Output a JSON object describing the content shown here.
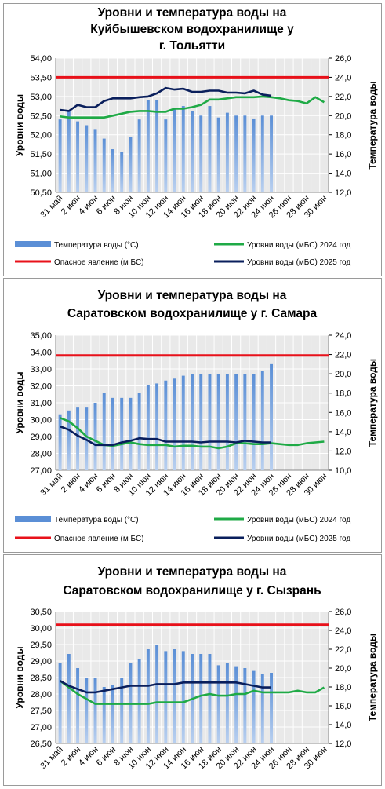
{
  "colors": {
    "bar": "#5b8fd6",
    "bar_light": "#b9d0f0",
    "level_2024": "#1faa46",
    "level_2025": "#0a1f5c",
    "danger": "#e8111a",
    "plot_bg": "#e9e9e9",
    "grid": "#ffffff"
  },
  "legend": {
    "temp": "Температура воды (°С)",
    "l2024": "Уровни воды (мБС) 2024 год",
    "danger": "Опасное явление    (м БС)",
    "l2025": "Уровни воды (мБС) 2025 год"
  },
  "chart_data": [
    {
      "type": "bar",
      "title_lines": [
        "Уровни и температура  воды на",
        "Куйбышевском водохранилище у",
        "г. Тольятти"
      ],
      "ylabel": "Уровни воды",
      "y2label": "Температура воды",
      "ylim": [
        50.5,
        54.0
      ],
      "y_ticks": [
        "50,50",
        "51,00",
        "51,50",
        "52,00",
        "52,50",
        "53,00",
        "53,50",
        "54,00"
      ],
      "y2lim": [
        12.0,
        26.0
      ],
      "y2_ticks": [
        "12,0",
        "14,0",
        "16,0",
        "18,0",
        "20,0",
        "22,0",
        "24,0",
        "26,0"
      ],
      "categories": [
        "31 май",
        "1 июн",
        "2 июн",
        "3 июн",
        "4 июн",
        "5 июн",
        "6 июн",
        "7 июн",
        "8 июн",
        "9 июн",
        "10 июн",
        "11 июн",
        "12 июн",
        "13 июн",
        "14 июн",
        "15 июн",
        "16 июн",
        "17 июн",
        "18 июн",
        "19 июн",
        "20 июн",
        "21 июн",
        "22 июн",
        "23 июн",
        "24 июн",
        "25 июн",
        "26 июн",
        "27 июн",
        "28 июн",
        "29 июн",
        "30 июн"
      ],
      "x_tick_labels": [
        "31 май",
        "2 июн",
        "4 июн",
        "6 июн",
        "8 июн",
        "10 июн",
        "12 июн",
        "14 июн",
        "16 июн",
        "18 июн",
        "20 июн",
        "22 июн",
        "24 июн",
        "26 июн",
        "28 июн",
        "30 июн"
      ],
      "temperature": [
        19.6,
        20.5,
        19.4,
        19.0,
        18.6,
        17.6,
        16.5,
        16.2,
        17.8,
        19.6,
        21.6,
        21.6,
        19.6,
        20.8,
        21.0,
        20.5,
        20.0,
        21.0,
        19.8,
        20.3,
        20.0,
        20.0,
        19.7,
        20.0,
        20.0,
        null,
        null,
        null,
        null,
        null,
        null
      ],
      "level_2024": [
        52.48,
        52.45,
        52.45,
        52.45,
        52.45,
        52.45,
        52.5,
        52.55,
        52.6,
        52.62,
        52.62,
        52.6,
        52.6,
        52.68,
        52.68,
        52.72,
        52.78,
        52.92,
        52.92,
        52.95,
        52.98,
        52.98,
        52.98,
        53.0,
        52.98,
        52.95,
        52.9,
        52.88,
        52.82,
        52.98,
        52.85
      ],
      "level_2025": [
        52.65,
        52.62,
        52.78,
        52.72,
        52.72,
        52.88,
        52.95,
        52.95,
        52.95,
        52.98,
        53.0,
        53.08,
        53.22,
        53.18,
        53.2,
        53.12,
        53.12,
        53.15,
        53.15,
        53.1,
        53.1,
        53.08,
        53.15,
        53.05,
        53.02,
        null,
        null,
        null,
        null,
        null,
        null
      ],
      "danger_level": 53.5
    },
    {
      "type": "bar",
      "title_lines": [
        "Уровни и температура  воды на",
        "Саратовском водохранилище у  г. Самара"
      ],
      "ylabel": "Уровни воды",
      "y2label": "Температура воды",
      "ylim": [
        27.0,
        35.0
      ],
      "y_ticks": [
        "27,00",
        "28,00",
        "29,00",
        "30,00",
        "31,00",
        "32,00",
        "33,00",
        "34,00",
        "35,00"
      ],
      "y2lim": [
        10.0,
        24.0
      ],
      "y2_ticks": [
        "10,0",
        "12,0",
        "14,0",
        "16,0",
        "18,0",
        "20,0",
        "22,0",
        "24,0"
      ],
      "categories": [
        "31 май",
        "1 июн",
        "2 июн",
        "3 июн",
        "4 июн",
        "5 июн",
        "6 июн",
        "7 июн",
        "8 июн",
        "9 июн",
        "10 июн",
        "11 июн",
        "12 июн",
        "13 июн",
        "14 июн",
        "15 июн",
        "16 июн",
        "17 июн",
        "18 июн",
        "19 июн",
        "20 июн",
        "21 июн",
        "22 июн",
        "23 июн",
        "24 июн",
        "25 июн",
        "26 июн",
        "27 июн",
        "28 июн",
        "29 июн",
        "30 июн"
      ],
      "x_tick_labels": [
        "31 май",
        "2 июн",
        "4 июн",
        "6 июн",
        "8 июн",
        "10 июн",
        "12 июн",
        "14 июн",
        "16 июн",
        "18 июн",
        "20 июн",
        "22 июн",
        "24 июн",
        "26 июн",
        "28 июн",
        "30 июн"
      ],
      "temperature": [
        15.8,
        16.2,
        16.5,
        16.5,
        17.0,
        18.0,
        17.5,
        17.5,
        17.5,
        18.0,
        18.8,
        19.0,
        19.3,
        19.5,
        19.8,
        20.0,
        20.0,
        20.0,
        20.0,
        20.0,
        20.0,
        20.0,
        20.0,
        20.3,
        21.0,
        null,
        null,
        null,
        null,
        null,
        null
      ],
      "level_2024": [
        30.1,
        29.9,
        29.5,
        29.0,
        28.75,
        28.5,
        28.45,
        28.55,
        28.65,
        28.55,
        28.5,
        28.5,
        28.5,
        28.4,
        28.45,
        28.45,
        28.4,
        28.4,
        28.3,
        28.4,
        28.6,
        28.6,
        28.55,
        28.55,
        28.6,
        28.55,
        28.5,
        28.5,
        28.6,
        28.65,
        28.7
      ],
      "level_2025": [
        29.6,
        29.4,
        29.05,
        28.8,
        28.5,
        28.5,
        28.5,
        28.65,
        28.75,
        28.9,
        28.85,
        28.85,
        28.7,
        28.7,
        28.7,
        28.7,
        28.65,
        28.7,
        28.7,
        28.7,
        28.65,
        28.75,
        28.7,
        28.65,
        28.65,
        null,
        null,
        null,
        null,
        null,
        null
      ],
      "danger_level": 33.8
    },
    {
      "type": "bar",
      "title_lines": [
        "Уровни и температура  воды на",
        "Саратовском водохранилище у  г. Сызрань"
      ],
      "ylabel": "Уровни воды",
      "y2label": "Температура воды",
      "ylim": [
        26.5,
        30.5
      ],
      "y_ticks": [
        "26,50",
        "27,00",
        "27,50",
        "28,00",
        "28,50",
        "29,00",
        "29,50",
        "30,00",
        "30,50"
      ],
      "y2lim": [
        12.0,
        26.0
      ],
      "y2_ticks": [
        "12,0",
        "14,0",
        "16,0",
        "18,0",
        "20,0",
        "22,0",
        "24,0",
        "26,0"
      ],
      "categories": [
        "31 май",
        "1 июн",
        "2 июн",
        "3 июн",
        "4 июн",
        "5 июн",
        "6 июн",
        "7 июн",
        "8 июн",
        "9 июн",
        "10 июн",
        "11 июн",
        "12 июн",
        "13 июн",
        "14 июн",
        "15 июн",
        "16 июн",
        "17 июн",
        "18 июн",
        "19 июн",
        "20 июн",
        "21 июн",
        "22 июн",
        "23 июн",
        "24 июн",
        "25 июн",
        "26 июн",
        "27 июн",
        "28 июн",
        "29 июн",
        "30 июн"
      ],
      "x_tick_labels": [
        "31 май",
        "2 июн",
        "4 июн",
        "6 июн",
        "8 июн",
        "10 июн",
        "12 июн",
        "14 июн",
        "16 июн",
        "18 июн",
        "20 июн",
        "22 июн",
        "24 июн",
        "26 июн",
        "28 июн",
        "30 июн"
      ],
      "temperature": [
        20.5,
        21.5,
        20.0,
        19.0,
        19.0,
        18.0,
        18.2,
        19.0,
        20.5,
        21.0,
        22.0,
        22.5,
        21.8,
        22.0,
        21.8,
        21.5,
        21.5,
        21.5,
        20.3,
        20.5,
        20.2,
        20.0,
        19.7,
        19.4,
        19.5,
        null,
        null,
        null,
        null,
        null,
        null
      ],
      "level_2024": [
        28.4,
        28.2,
        28.0,
        27.85,
        27.7,
        27.7,
        27.7,
        27.7,
        27.7,
        27.7,
        27.7,
        27.75,
        27.75,
        27.75,
        27.75,
        27.85,
        27.95,
        28.0,
        27.95,
        27.95,
        28.0,
        28.0,
        28.1,
        28.05,
        28.05,
        28.05,
        28.05,
        28.1,
        28.05,
        28.05,
        28.2
      ],
      "level_2025": [
        28.4,
        28.25,
        28.15,
        28.05,
        28.05,
        28.1,
        28.15,
        28.2,
        28.25,
        28.25,
        28.25,
        28.3,
        28.3,
        28.3,
        28.35,
        28.35,
        28.35,
        28.35,
        28.35,
        28.35,
        28.35,
        28.3,
        28.25,
        28.2,
        28.2,
        null,
        null,
        null,
        null,
        null,
        null
      ],
      "danger_level": 30.1
    }
  ]
}
